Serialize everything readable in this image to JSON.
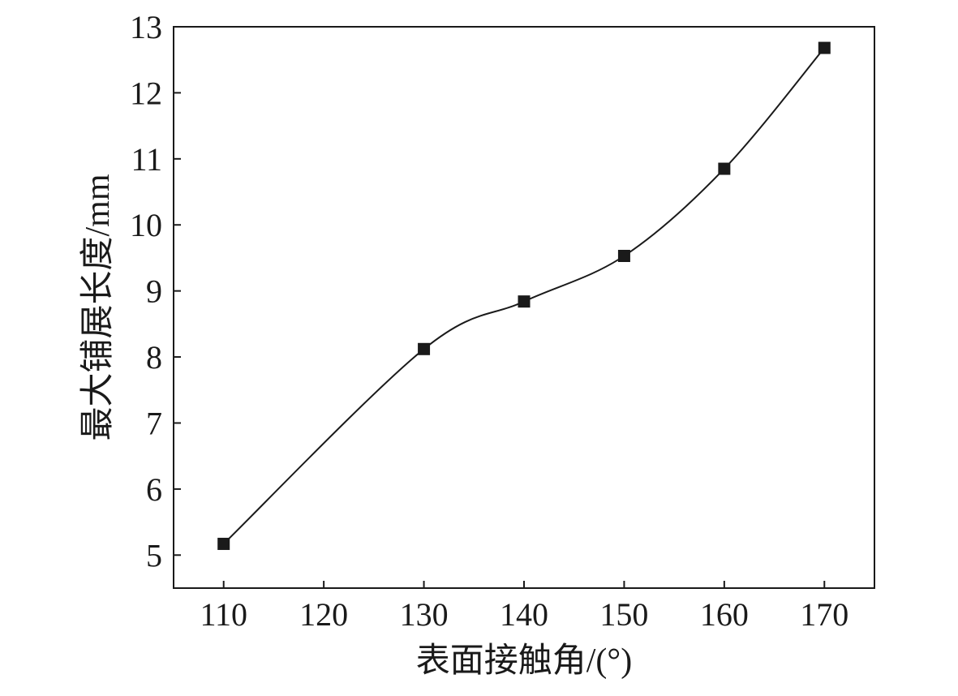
{
  "chart_data": {
    "type": "line",
    "title": "",
    "xlabel": "表面接触角/(°)",
    "ylabel": "最大铺展长度/mm",
    "xlim": [
      105,
      175
    ],
    "ylim": [
      4.5,
      13
    ],
    "xticks": [
      110,
      120,
      130,
      140,
      150,
      160,
      170
    ],
    "yticks": [
      5,
      6,
      7,
      8,
      9,
      10,
      11,
      12,
      13
    ],
    "grid": false,
    "legend": "none",
    "smooth": true,
    "marker": "square",
    "series": [
      {
        "x": [
          110,
          130,
          140,
          150,
          160,
          170
        ],
        "values": [
          5.17,
          8.12,
          8.84,
          9.53,
          10.85,
          12.68
        ]
      }
    ],
    "colors": {
      "line": "#1a1a1a",
      "marker": "#1a1a1a"
    }
  }
}
